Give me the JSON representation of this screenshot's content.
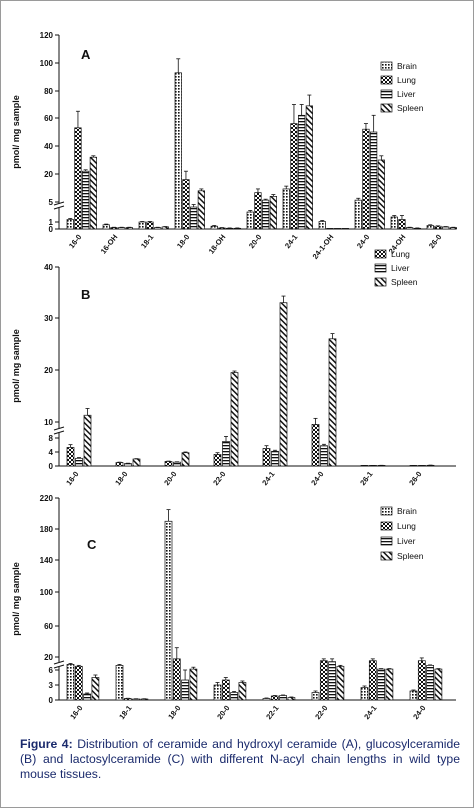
{
  "chart_data": [
    {
      "panel": "A",
      "type": "bar",
      "ylabel": "pmol/ mg sample",
      "yticks": [
        0,
        1,
        5,
        20,
        40,
        60,
        80,
        100,
        120
      ],
      "ylim": [
        0,
        120
      ],
      "categories": [
        "16-0",
        "16-OH",
        "18-1",
        "18-0",
        "18-OH",
        "20-0",
        "24-1",
        "24-1-OH",
        "24-0",
        "24-OH",
        "26-0"
      ],
      "legend_position": "right",
      "series": [
        {
          "name": "Brain",
          "pattern": "dots",
          "values": [
            1.5,
            0.6,
            1.0,
            93,
            0.4,
            3,
            12,
            1.1,
            6,
            2,
            0.5
          ],
          "errors": [
            0.2,
            0.1,
            0.1,
            10,
            0.1,
            0.3,
            1.5,
            0.2,
            1,
            0.3,
            0.1
          ]
        },
        {
          "name": "Lung",
          "pattern": "checker",
          "values": [
            53,
            0.2,
            1.0,
            17,
            0.15,
            10,
            56,
            0,
            52,
            1.5,
            0.4
          ],
          "errors": [
            12,
            0.05,
            0.1,
            5,
            0.05,
            2,
            14,
            0,
            4,
            0.8,
            0.05
          ]
        },
        {
          "name": "Liver",
          "pattern": "hstripes",
          "values": [
            22,
            0.2,
            0.2,
            4,
            0.1,
            6,
            62,
            0,
            50,
            0.2,
            0.3
          ],
          "errors": [
            1,
            0.05,
            0.05,
            0.5,
            0.05,
            0.5,
            8,
            0,
            12,
            0.05,
            0.05
          ]
        },
        {
          "name": "Spleen",
          "pattern": "diag",
          "values": [
            32,
            0.2,
            0.3,
            11,
            0.1,
            8,
            69,
            0,
            30,
            0.1,
            0.2
          ],
          "errors": [
            1,
            0.05,
            0.05,
            1,
            0.05,
            1,
            8,
            0,
            3,
            0.05,
            0.05
          ]
        }
      ]
    },
    {
      "panel": "B",
      "type": "bar",
      "ylabel": "pmol/ mg sample",
      "yticks": [
        0,
        4,
        8,
        10,
        20,
        30,
        40
      ],
      "ylim": [
        0,
        40
      ],
      "categories": [
        "16-0",
        "18-0",
        "20-0",
        "22-0",
        "24-1",
        "24-0",
        "26-1",
        "26-0"
      ],
      "legend_position": "right",
      "series": [
        {
          "name": "Lung",
          "pattern": "checker",
          "values": [
            5.3,
            1.0,
            1.3,
            3.3,
            5.0,
            9.7,
            0.1,
            0.1
          ],
          "errors": [
            0.8,
            0.1,
            0.1,
            0.5,
            0.8,
            1.0,
            0.05,
            0.05
          ]
        },
        {
          "name": "Liver",
          "pattern": "hstripes",
          "values": [
            2.2,
            0.7,
            1.1,
            7.0,
            4.2,
            5.8,
            0.1,
            0.05
          ],
          "errors": [
            0.2,
            0.1,
            0.1,
            1.2,
            0.3,
            0.4,
            0.05,
            0.05
          ]
        },
        {
          "name": "Spleen",
          "pattern": "diag",
          "values": [
            11.3,
            2.0,
            3.8,
            19.5,
            33,
            26,
            0.15,
            0.2
          ],
          "errors": [
            1.3,
            0.1,
            0.2,
            0.3,
            1.3,
            1.0,
            0.05,
            0.05
          ]
        }
      ]
    },
    {
      "panel": "C",
      "type": "bar",
      "ylabel": "pmol/ mg sample",
      "yticks": [
        0,
        3,
        6,
        20,
        60,
        100,
        140,
        180,
        220
      ],
      "ylim": [
        0,
        220
      ],
      "categories": [
        "16-0",
        "18-1",
        "18-0",
        "20-0",
        "22-1",
        "22-0",
        "24-1",
        "24-0"
      ],
      "legend_position": "top-right",
      "series": [
        {
          "name": "Brain",
          "pattern": "dots",
          "values": [
            12,
            11,
            190,
            3,
            0.3,
            1.5,
            2.5,
            1.8
          ],
          "errors": [
            1,
            1,
            15,
            0.5,
            0.1,
            0.3,
            0.3,
            0.2
          ]
        },
        {
          "name": "Lung",
          "pattern": "checker",
          "values": [
            10,
            0.3,
            18,
            4,
            0.8,
            16,
            16,
            16
          ],
          "errors": [
            1,
            0.05,
            14,
            0.5,
            0.1,
            2,
            2,
            3
          ]
        },
        {
          "name": "Liver",
          "pattern": "hstripes",
          "values": [
            1.2,
            0.2,
            4,
            1.5,
            0.9,
            15,
            7,
            11
          ],
          "errors": [
            0.2,
            0.05,
            2,
            0.2,
            0.1,
            3,
            0.5,
            0.5
          ]
        },
        {
          "name": "Spleen",
          "pattern": "diag",
          "values": [
            4.5,
            0.2,
            7,
            3.5,
            0.5,
            10,
            7,
            7
          ],
          "errors": [
            0.5,
            0.05,
            2,
            0.3,
            0.1,
            1,
            0.5,
            0.5
          ]
        }
      ]
    }
  ],
  "caption": {
    "label": "Figure 4:",
    "text": " Distribution of ceramide and hydroxyl ceramide (A), glucosylceramide (B) and lactosylceramide (C) with different N-acyl chain lengths in wild type mouse tissues."
  },
  "colors": {
    "ink": "#111111",
    "caption": "#1a2a6c",
    "border": "#9a9a9a"
  }
}
